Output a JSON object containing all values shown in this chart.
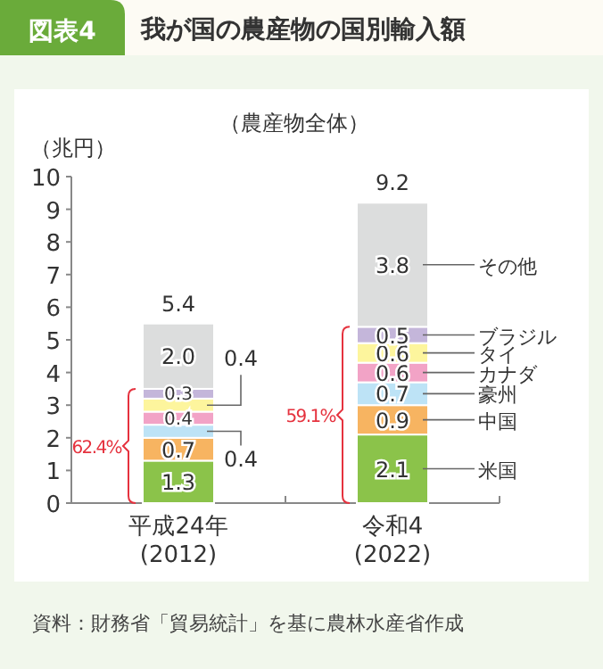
{
  "chart_data": {
    "type": "bar",
    "stacked": true,
    "title": "我が国の農産物の国別輸入額",
    "subtitle": "（農産物全体）",
    "ylabel": "（兆円）",
    "categories": [
      "平成24年\n(2012)",
      "令和4\n(2022)"
    ],
    "ylim": [
      0,
      10
    ],
    "yticks": [
      0,
      1,
      2,
      3,
      4,
      5,
      6,
      7,
      8,
      9,
      10
    ],
    "series": [
      {
        "name": "米国",
        "color": "#8bc34a",
        "values": [
          1.3,
          2.1
        ],
        "value_labels": [
          "1.3",
          "2.1"
        ]
      },
      {
        "name": "中国",
        "color": "#f7b461",
        "values": [
          0.7,
          0.9
        ],
        "value_labels": [
          "0.7",
          "0.9"
        ]
      },
      {
        "name": "豪州",
        "color": "#bde3f6",
        "values": [
          0.4,
          0.7
        ],
        "value_labels": [
          "0.4",
          "0.7"
        ]
      },
      {
        "name": "カナダ",
        "color": "#f2a3c6",
        "values": [
          0.4,
          0.6
        ],
        "value_labels": [
          "0.4",
          "0.6"
        ]
      },
      {
        "name": "タイ",
        "color": "#fdf59d",
        "values": [
          0.4,
          0.6
        ],
        "value_labels": [
          "0.4",
          "0.6"
        ]
      },
      {
        "name": "ブラジル",
        "color": "#c4b6da",
        "values": [
          0.3,
          0.5
        ],
        "value_labels": [
          "0.3",
          "0.5"
        ]
      },
      {
        "name": "その他",
        "color": "#dcdddd",
        "values": [
          2.0,
          3.8
        ],
        "value_labels": [
          "2.0",
          "3.8"
        ]
      }
    ],
    "totals": [
      "5.4",
      "9.2"
    ],
    "annotations": [
      "図表4",
      "62.4%",
      "59.1%",
      "資料：財務省「貿易統計」を基に農林水産省作成"
    ]
  }
}
